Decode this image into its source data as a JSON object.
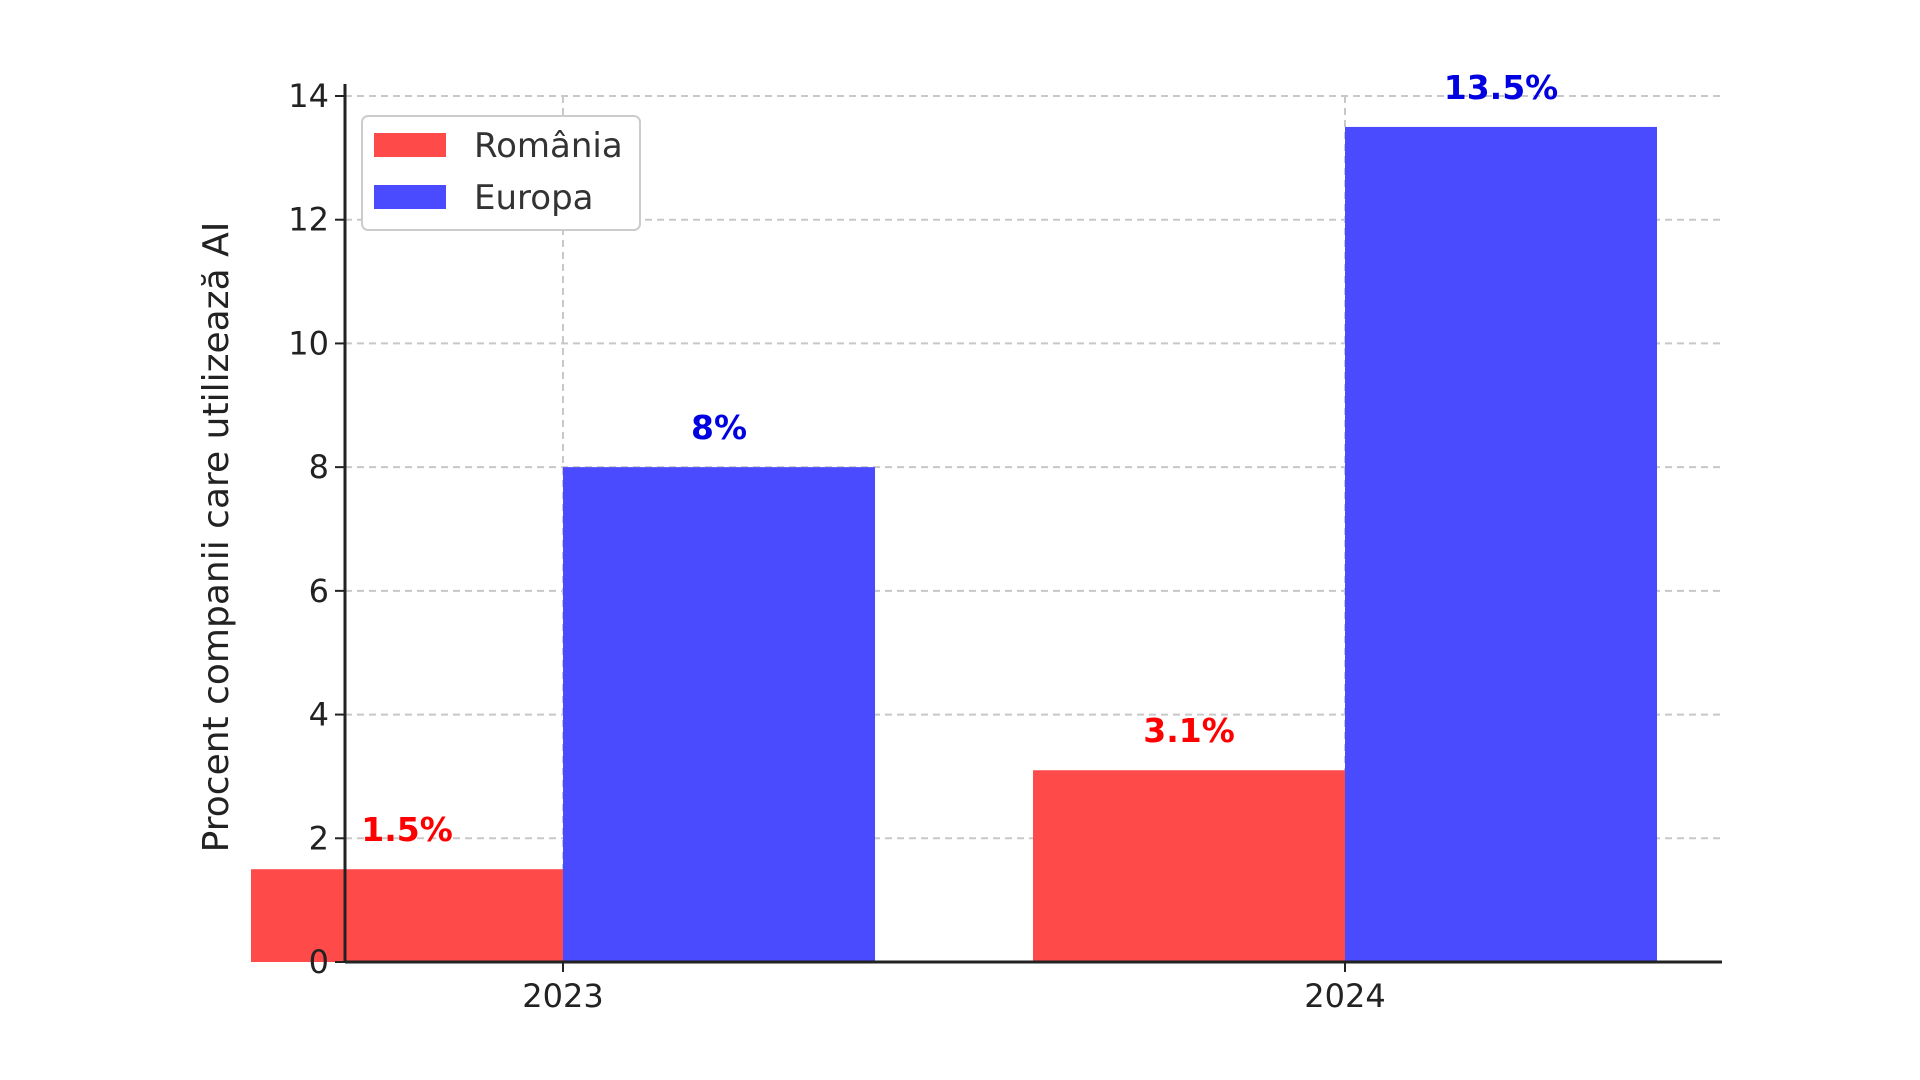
{
  "chart_data": {
    "type": "bar",
    "title": "",
    "xlabel": "",
    "ylabel": "Procent companii care utilizează AI",
    "categories": [
      "2023",
      "2024"
    ],
    "ylim": [
      0,
      14
    ],
    "yticks": [
      0,
      2,
      4,
      6,
      8,
      10,
      12,
      14
    ],
    "grid": true,
    "legend_placement": "top-left",
    "overlap_color": "#4a14cf",
    "series": [
      {
        "name": "România",
        "values": [
          1.5,
          3.1
        ],
        "labels": [
          "1.5%",
          "3.1%"
        ],
        "color": "#ff4a4a",
        "label_color": "#ff0000"
      },
      {
        "name": "Europa",
        "values": [
          8,
          13.5
        ],
        "labels": [
          "8%",
          "13.5%"
        ],
        "color": "#4a4aff",
        "label_color": "#0000e0"
      }
    ]
  }
}
